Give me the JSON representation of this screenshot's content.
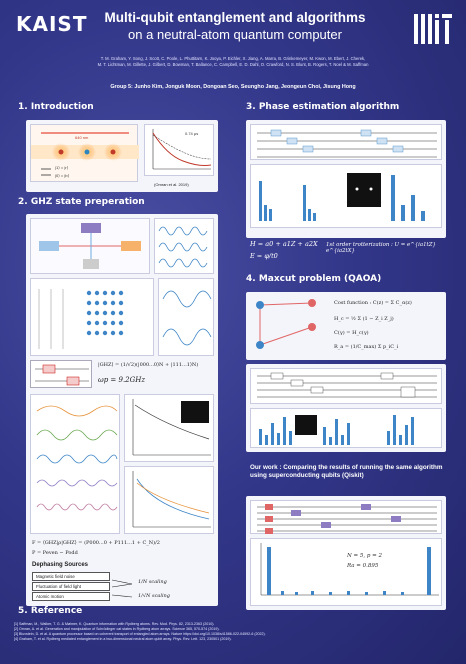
{
  "header": {
    "logo_left": "KAIST",
    "title_line1": "Multi-qubit entanglement and algorithms",
    "title_line2": "on a neutral-atom quantum computer",
    "authors_line1": "T. M. Graham, Y. Song, J. Scott, C. Poole, L. Phuttitarn, K. Jooya, P. Eichler, X. Jiang, A. Marra, B. Grinkemeyer, M. Kwon, M. Ebert, J. Cherek,",
    "authors_line2": "M. T. Lichtman, M. Gillette, J. Gilbert, D. Bowman, T. Ballance, C. Campbell, E. D. Dahl, O. Crawford, N. S. Blunt, B. Rogers, T. Noel & M. Saffman",
    "group": "Group 5: Junho Kim, Jonguk Moon, Dongoan Seo, Seungho Jang, Jeongeun Choi, Jisung Hong"
  },
  "sections": {
    "intro": "1.  Introduction",
    "ghz": "2.  GHZ state preperation",
    "phase": "3.  Phase estimation algorithm",
    "maxcut": "4.  Maxcut problem (QAOA)",
    "reference": "5.  Reference"
  },
  "intro": {
    "label_wavelength": "640 nm",
    "label_ket1": "|1⟩ = |r⟩",
    "label_ket0": "|0⟩ = |b⟩",
    "label_time": "0.74 μs",
    "caption": "(Omran et al. 2019)"
  },
  "ghz": {
    "eq1": "|GHZ⟩ = (1/√2)(|000...0⟩N + |111...1⟩N)",
    "eq2": "ωp = 9.2GHz",
    "eq3": "F = ⟨GHZ|ρ|GHZ⟩ = (P000...0 + P111...1 + C_N)/2",
    "eq4": "P = Peven − Podd",
    "dephasing_title": "Dephasing Sources",
    "sources": [
      "Magnetic field noise",
      "Fluctuation of field light",
      "Atomic motion"
    ],
    "scaling1": "1/N scaling",
    "scaling2": "1/√N scaling"
  },
  "phase": {
    "eq1": "H = a0 + a1Z + a2X",
    "eq2": "E = φ/t0",
    "trotter": "1st order trotterization : U = e^{ia1tZ} e^{ia2tX}"
  },
  "maxcut": {
    "cost": "Cost function : C(z) = Σ C_α(z)",
    "hc": "H_c = ½ Σ (1 − Z_i Z_j)",
    "cexp": "C(γ) = H_c(γ)",
    "ra": "R_a = (1/C_max) Σ p_iC_i",
    "our_work": "Our work : Comparing the results of running the same algorithm using superconducting qubits (Qiskit)",
    "result_n": "N = 5, p = 2",
    "result_ra": "Ra = 0.895"
  },
  "references": [
    "[1] Saffman, M., Walker, T. G. & Mølmer, K. Quantum information with Rydberg atoms. Rev. Mod. Phys. 82, 2313-2363 (2010).",
    "[2] Omran, A. et al. Generation and manipulation of Schrödinger cat states in Rydberg atom arrays. Science 365, 570-574 (2019).",
    "[3] Bluvstein, D. et al. A quantum processor based on coherent transport of entangled atom arrays. Nature https://doi.org/10.1038/s41586-022-04592-6 (2022).",
    "[4] Graham, T. et al. Rydberg mediated entanglement in a two-dimensional neutral atom qubit array. Phys. Rev. Lett. 123, 230501 (2019)."
  ]
}
